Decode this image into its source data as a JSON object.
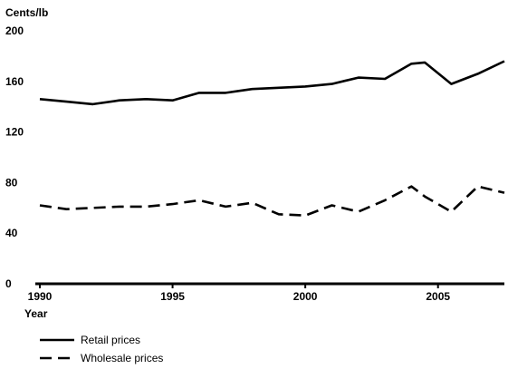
{
  "chart_data": {
    "type": "line",
    "ylabel": "Cents/lb",
    "xlabel": "Year",
    "ylim": [
      0,
      200
    ],
    "xlim": [
      1990,
      2007.5
    ],
    "y_ticks": [
      0,
      40,
      80,
      120,
      160,
      200
    ],
    "x_ticks": [
      1990,
      1995,
      2000,
      2005
    ],
    "grid": false,
    "legend_position": "bottom-left",
    "series": [
      {
        "name": "Retail prices",
        "style": "solid",
        "x": [
          1990,
          1991,
          1992,
          1993,
          1994,
          1995,
          1996,
          1997,
          1998,
          1999,
          2000,
          2001,
          2002,
          2003,
          2004,
          2004.5,
          2005.5,
          2006.5,
          2007.5
        ],
        "values": [
          146,
          144,
          142,
          145,
          146,
          145,
          151,
          151,
          154,
          155,
          156,
          158,
          163,
          162,
          174,
          175,
          158,
          166,
          176
        ]
      },
      {
        "name": "Wholesale prices",
        "style": "dashed",
        "x": [
          1990,
          1991,
          1992,
          1993,
          1994,
          1995,
          1996,
          1997,
          1998,
          1999,
          2000,
          2001,
          2002,
          2003,
          2004,
          2004.5,
          2005.5,
          2006.5,
          2007.5
        ],
        "values": [
          62,
          59,
          60,
          61,
          61,
          63,
          66,
          61,
          64,
          55,
          54,
          62,
          57,
          66,
          77,
          69,
          57,
          77,
          72
        ]
      }
    ]
  },
  "colors": {
    "line": "#000000",
    "background": "#ffffff"
  }
}
